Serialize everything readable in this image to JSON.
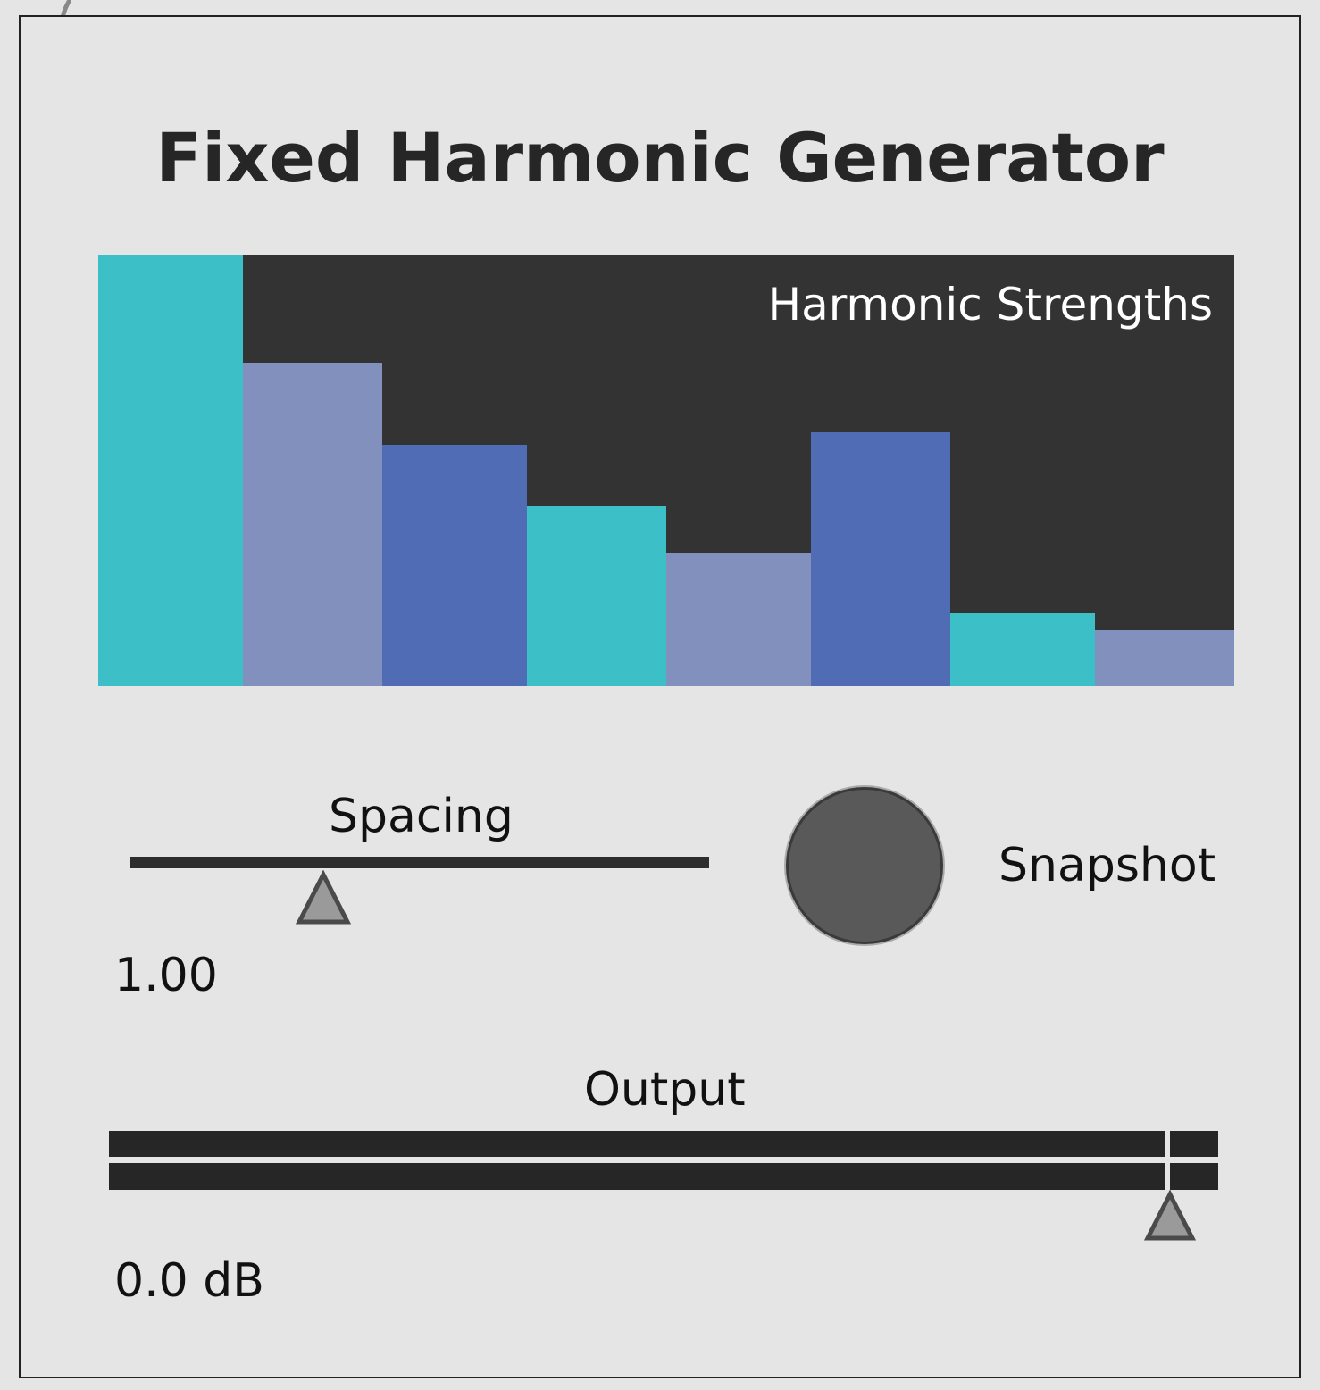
{
  "title": "Fixed Harmonic Generator",
  "harmonics": {
    "label": "Harmonic Strengths",
    "values": [
      1.0,
      0.75,
      0.56,
      0.42,
      0.31,
      0.59,
      0.17,
      0.13
    ],
    "colors": [
      "#3dbfc8",
      "#8190bd",
      "#4f6cb5",
      "#3dbfc8",
      "#8190bd",
      "#4f6cb5",
      "#3dbfc8",
      "#8190bd"
    ],
    "background": "#333333"
  },
  "spacing": {
    "label": "Spacing",
    "value": "1.00",
    "position": 0.33
  },
  "snapshot": {
    "label": "Snapshot"
  },
  "output": {
    "label": "Output",
    "value": "0.0 dB",
    "position": 0.955
  },
  "icons": {
    "thumb": "triangle-thumb-icon",
    "cable": "patch-cable-icon"
  }
}
